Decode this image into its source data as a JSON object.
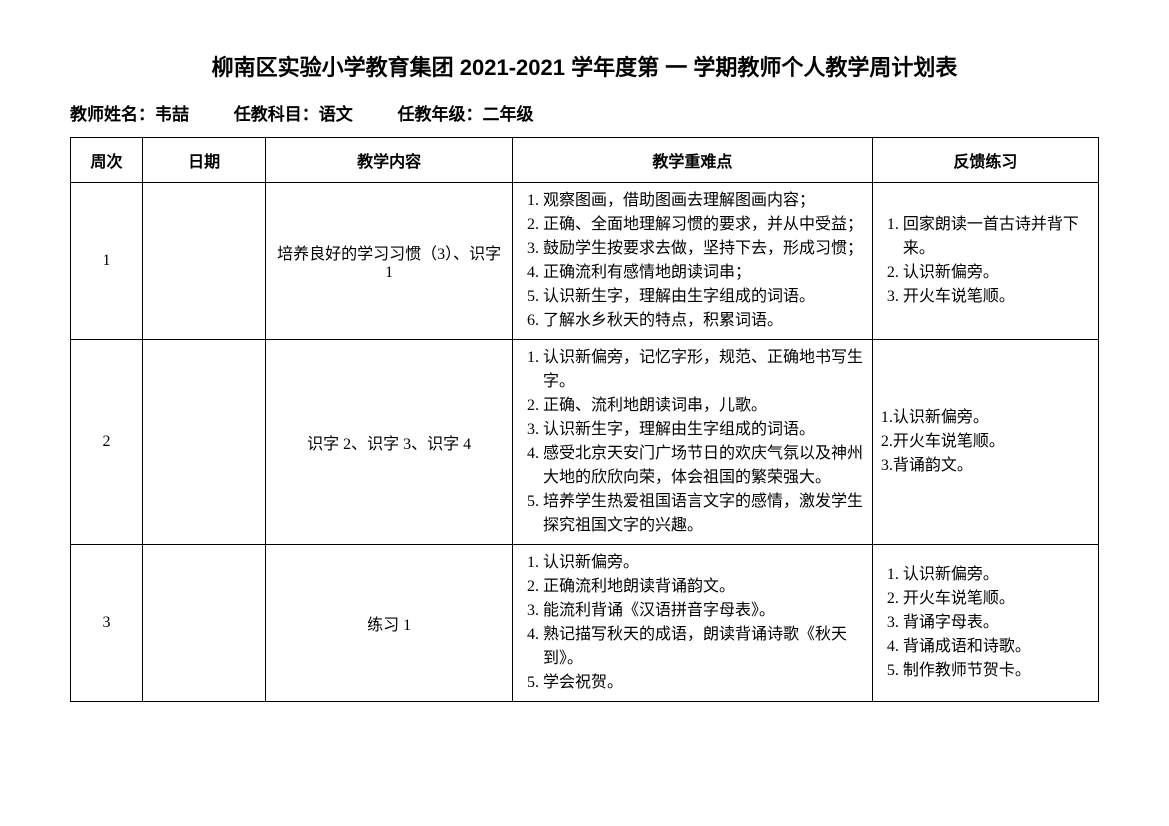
{
  "title": "柳南区实验小学教育集团 2021-2021 学年度第 一 学期教师个人教学周计划表",
  "meta": {
    "teacher_label": "教师姓名：韦喆",
    "subject_label": "任教科目：语文",
    "grade_label": "任教年级：二年级"
  },
  "headers": {
    "week": "周次",
    "date": "日期",
    "content": "教学内容",
    "keypoints": "教学重难点",
    "feedback": "反馈练习"
  },
  "rows": [
    {
      "week": "1",
      "date": "",
      "content": "培养良好的学习习惯（3）、识字1",
      "keypoints": [
        "观察图画，借助图画去理解图画内容；",
        "正确、全面地理解习惯的要求，并从中受益；",
        "鼓励学生按要求去做，坚持下去，形成习惯；",
        "正确流利有感情地朗读词串；",
        "认识新生字，理解由生字组成的词语。",
        "了解水乡秋天的特点，积累词语。"
      ],
      "feedback": [
        "回家朗读一首古诗并背下来。",
        "认识新偏旁。",
        "开火车说笔顺。"
      ],
      "feedback_style": "ol"
    },
    {
      "week": "2",
      "date": "",
      "content": "识字 2、识字 3、识字 4",
      "keypoints": [
        "认识新偏旁，记忆字形，规范、正确地书写生字。",
        "正确、流利地朗读词串，儿歌。",
        "认识新生字，理解由生字组成的词语。",
        "感受北京天安门广场节日的欢庆气氛以及神州大地的欣欣向荣，体会祖国的繁荣强大。",
        "培养学生热爱祖国语言文字的感情，激发学生探究祖国文字的兴趣。"
      ],
      "feedback": [
        "1.认识新偏旁。",
        "2.开火车说笔顺。",
        "3.背诵韵文。"
      ],
      "feedback_style": "plain"
    },
    {
      "week": "3",
      "date": "",
      "content": "练习 1",
      "keypoints": [
        "认识新偏旁。",
        "正确流利地朗读背诵韵文。",
        "能流利背诵《汉语拼音字母表》。",
        "熟记描写秋天的成语，朗读背诵诗歌《秋天到》。",
        "学会祝贺。"
      ],
      "feedback": [
        "认识新偏旁。",
        "开火车说笔顺。",
        "背诵字母表。",
        "背诵成语和诗歌。",
        "制作教师节贺卡。"
      ],
      "feedback_style": "ol"
    }
  ]
}
